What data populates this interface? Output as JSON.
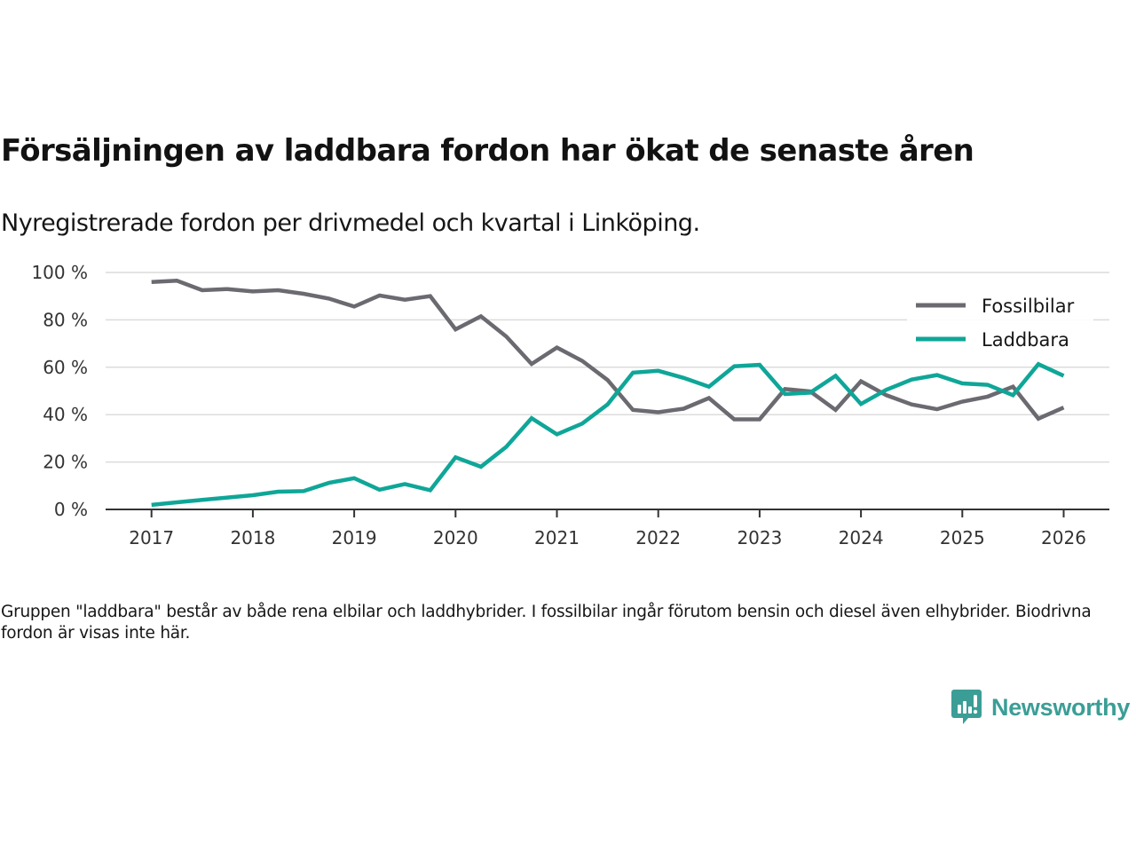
{
  "header": {
    "title": "Försäljningen av laddbara fordon har ökat de senaste åren",
    "subtitle": "Nyregistrerade fordon per drivmedel och kvartal i Linköping."
  },
  "footnote": "Gruppen \"laddbara\" består av både rena elbilar och laddhybrider. I fossilbilar ingår förutom bensin och diesel även elhybrider. Biodrivna fordon är visas inte här.",
  "brand": {
    "name": "Newsworthy",
    "icon": "newsworthy-chart-bubble-icon",
    "color": "#3b9e96"
  },
  "chart_data": {
    "type": "line",
    "title": "Försäljningen av laddbara fordon har ökat de senaste åren",
    "subtitle": "Nyregistrerade fordon per drivmedel och kvartal i Linköping.",
    "xlabel": "",
    "ylabel": "",
    "x": [
      "2017Q1",
      "2017Q2",
      "2017Q3",
      "2017Q4",
      "2018Q1",
      "2018Q2",
      "2018Q3",
      "2018Q4",
      "2019Q1",
      "2019Q2",
      "2019Q3",
      "2019Q4",
      "2020Q1",
      "2020Q2",
      "2020Q3",
      "2020Q4",
      "2021Q1",
      "2021Q2",
      "2021Q3",
      "2021Q4",
      "2022Q1",
      "2022Q2",
      "2022Q3",
      "2022Q4",
      "2023Q1",
      "2023Q2",
      "2023Q3",
      "2023Q4",
      "2024Q1",
      "2024Q2",
      "2024Q3",
      "2024Q4",
      "2025Q1",
      "2025Q2",
      "2025Q3",
      "2025Q4",
      "2026Q1"
    ],
    "x_ticks": [
      "2017",
      "2018",
      "2019",
      "2020",
      "2021",
      "2022",
      "2023",
      "2024",
      "2025",
      "2026"
    ],
    "y_ticks": [
      0,
      20,
      40,
      60,
      80,
      100
    ],
    "y_tick_labels": [
      "0 %",
      "20 %",
      "40 %",
      "60 %",
      "80 %",
      "100 %"
    ],
    "ylim": [
      0,
      100
    ],
    "xlim": [
      "2016Q3",
      "2026Q3"
    ],
    "grid": true,
    "legend_position": "top-right",
    "series": [
      {
        "name": "Fossilbilar",
        "color": "#6b6a70",
        "values": [
          96,
          96.5,
          92.5,
          93,
          92,
          92.5,
          91,
          89,
          85.6,
          90.3,
          88.5,
          90,
          76,
          81.5,
          73,
          61.4,
          68.3,
          62.7,
          54.6,
          42,
          41,
          42.5,
          47,
          38,
          38,
          50.8,
          49.8,
          42,
          54.1,
          48.2,
          44.3,
          42.3,
          45.5,
          47.6,
          51.8,
          38.3,
          43
        ]
      },
      {
        "name": "Laddbara",
        "color": "#0fa698",
        "values": [
          1.9,
          3,
          4,
          5,
          6,
          7.5,
          7.7,
          11.2,
          13.2,
          8.3,
          10.7,
          8.1,
          22,
          18,
          26.4,
          38.5,
          31.7,
          36.2,
          44.3,
          57.7,
          58.5,
          55.5,
          51.8,
          60.4,
          61,
          48.7,
          49.3,
          56.4,
          44.5,
          50.5,
          54.8,
          56.7,
          53.2,
          52.6,
          48.2,
          61.3,
          56.4
        ]
      }
    ]
  }
}
